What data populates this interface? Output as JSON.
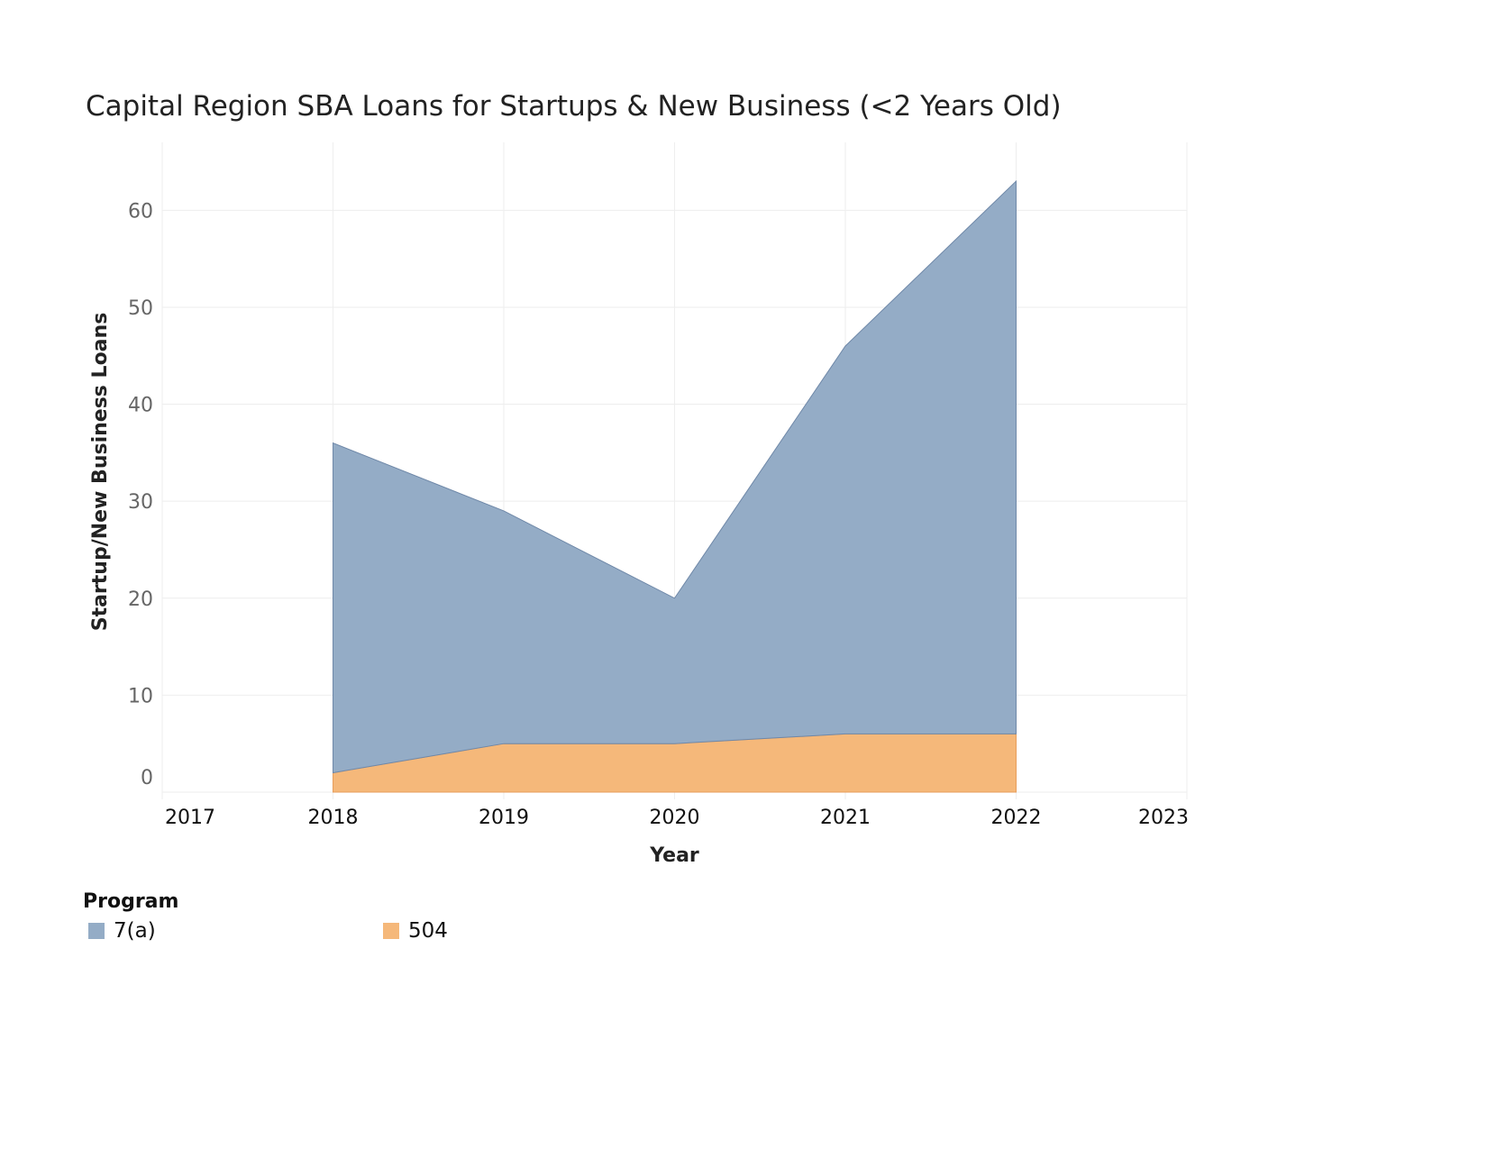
{
  "chart_data": {
    "type": "area",
    "stacked": true,
    "title": "Capital Region SBA Loans for Startups & New Business (<2 Years Old)",
    "xlabel": "Year",
    "ylabel": "Startup/New Business Loans",
    "x_ticks": [
      "2017",
      "2018",
      "2019",
      "2020",
      "2021",
      "2022",
      "2023"
    ],
    "xlim": [
      2017,
      2023
    ],
    "y_ticks": [
      0,
      10,
      20,
      30,
      40,
      50,
      60
    ],
    "ylim": [
      0,
      67
    ],
    "grid": true,
    "x": [
      2018,
      2019,
      2020,
      2021,
      2022
    ],
    "series": [
      {
        "name": "504",
        "color": "#f5b87a",
        "values": [
          2,
          5,
          5,
          6,
          6
        ]
      },
      {
        "name": "7(a)",
        "color": "#94acc6",
        "values": [
          34,
          24,
          15,
          40,
          57
        ]
      }
    ],
    "legend": {
      "title": "Program",
      "position": "bottom-left",
      "entries": [
        "7(a)",
        "504"
      ]
    }
  }
}
